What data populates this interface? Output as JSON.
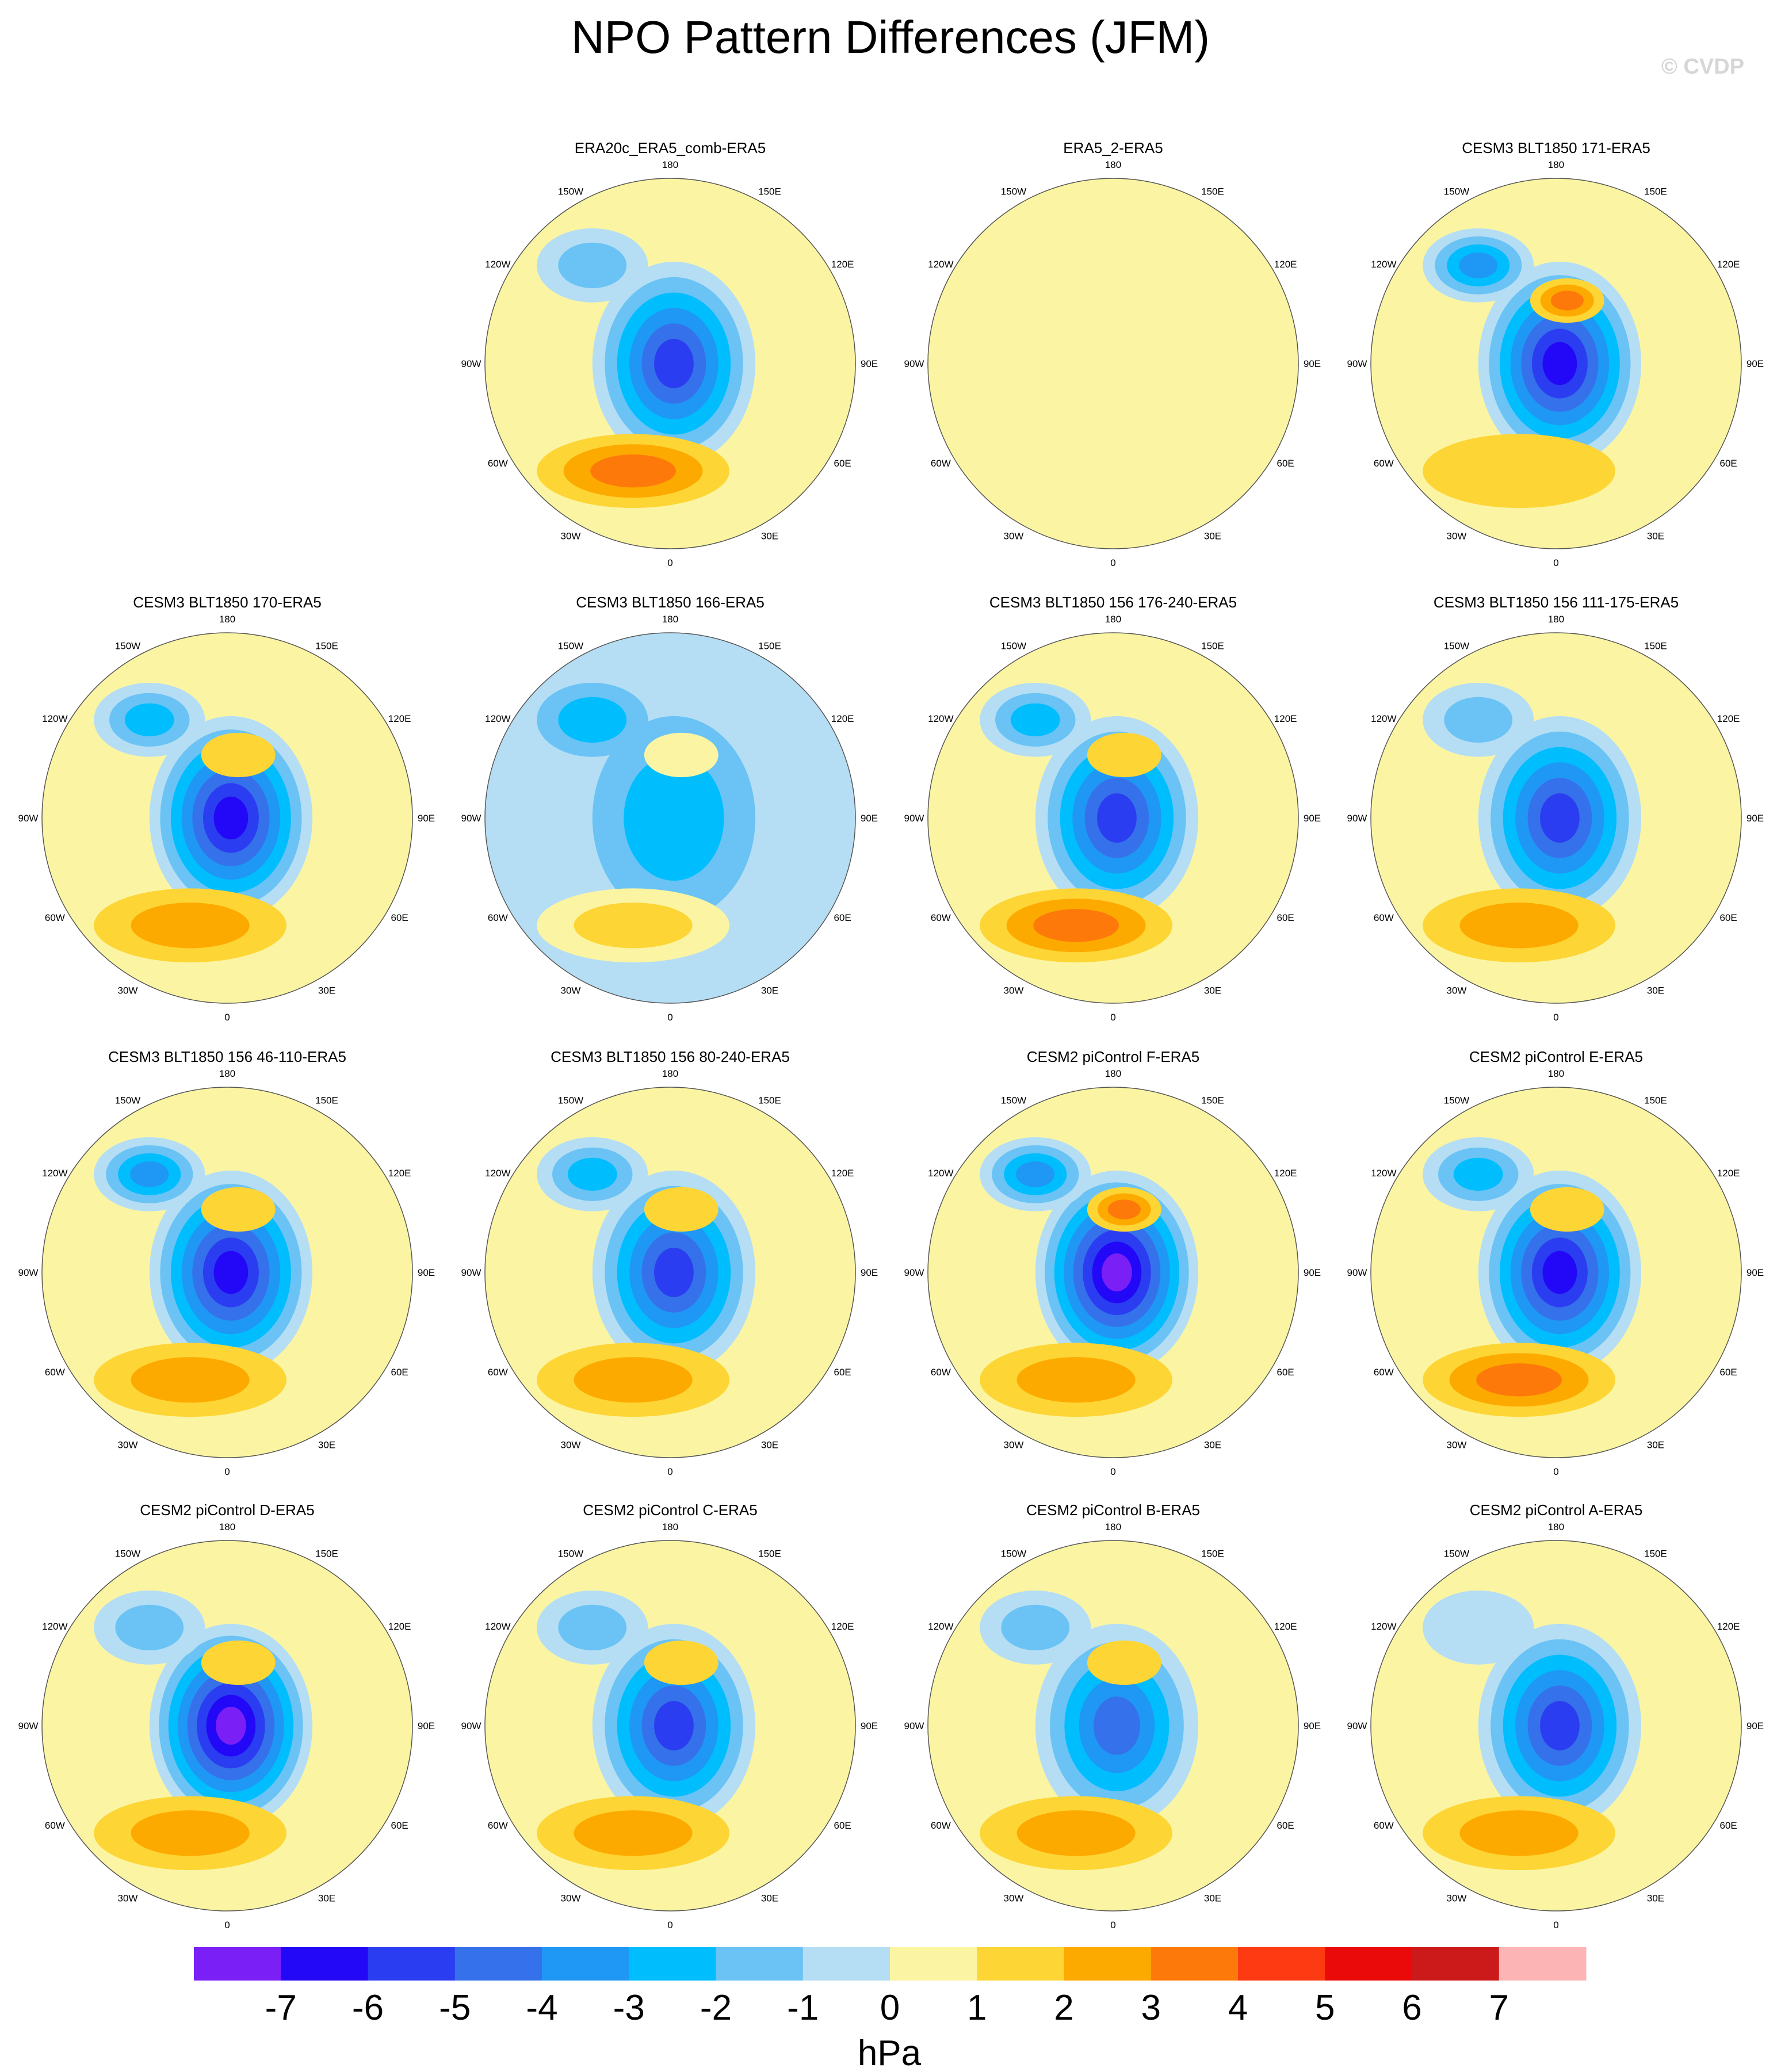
{
  "title": "NPO Pattern Differences (JFM)",
  "watermark": "© CVDP",
  "chart_data": {
    "type": "heatmap",
    "projection": "north-polar-stereographic",
    "variable": "sea level pressure difference",
    "units": "hPa",
    "levels": [
      -7,
      -6,
      -5,
      -4,
      -3,
      -2,
      -1,
      0,
      1,
      2,
      3,
      4,
      5,
      6,
      7
    ],
    "level_labels": [
      "-7",
      "-6",
      "-5",
      "-4",
      "-3",
      "-2",
      "-1",
      "0",
      "1",
      "2",
      "3",
      "4",
      "5",
      "6",
      "7"
    ],
    "colors": [
      "#7a1ff5",
      "#2208f7",
      "#2b3df0",
      "#3571ea",
      "#1f97f5",
      "#00befd",
      "#6ac3f4",
      "#b5def4",
      "#fbf5a3",
      "#fdd535",
      "#fdaa00",
      "#fd7a0a",
      "#fd3a12",
      "#ea0a0a",
      "#cc1a1a",
      "#fdb4b4"
    ],
    "longitude_labels": [
      "180",
      "150E",
      "120E",
      "90E",
      "60E",
      "30E",
      "0",
      "30W",
      "60W",
      "90W",
      "120W",
      "150W"
    ],
    "panels": [
      {
        "title": "ERA20c_ERA5_comb-ERA5",
        "row": 0,
        "col": 1,
        "center_min": -6.5,
        "atlantic_max": 3.5,
        "pacific_min": -2.4,
        "east_asia_max": 1.2,
        "background": 0.4
      },
      {
        "title": "ERA5_2-ERA5",
        "row": 0,
        "col": 2,
        "center_min": 0.3,
        "atlantic_max": 0.2,
        "pacific_min": -0.3,
        "east_asia_max": 0.2,
        "background": 0.3
      },
      {
        "title": "CESM3 BLT1850 171-ERA5",
        "row": 0,
        "col": 3,
        "center_min": -7.3,
        "atlantic_max": 2.2,
        "pacific_min": -4.2,
        "east_asia_max": 4.2,
        "background": 0.4
      },
      {
        "title": "CESM3 BLT1850 170-ERA5",
        "row": 1,
        "col": 0,
        "center_min": -6.6,
        "atlantic_max": 3.0,
        "pacific_min": -2.6,
        "east_asia_max": 1.4,
        "background": 0.4
      },
      {
        "title": "CESM3 BLT1850 166-ERA5",
        "row": 1,
        "col": 1,
        "center_min": -2.7,
        "atlantic_max": 1.9,
        "pacific_min": -2.5,
        "east_asia_max": 1.1,
        "background": -0.4
      },
      {
        "title": "CESM3 BLT1850 156 176-240-ERA5",
        "row": 1,
        "col": 2,
        "center_min": -6.4,
        "atlantic_max": 3.4,
        "pacific_min": -3.3,
        "east_asia_max": 1.5,
        "background": 0.4
      },
      {
        "title": "CESM3 BLT1850 156 111-175-ERA5",
        "row": 1,
        "col": 3,
        "center_min": -6.2,
        "atlantic_max": 2.6,
        "pacific_min": -2.4,
        "east_asia_max": 1.2,
        "background": 0.4
      },
      {
        "title": "CESM3 BLT1850 156 46-110-ERA5",
        "row": 2,
        "col": 0,
        "center_min": -7.2,
        "atlantic_max": 3.2,
        "pacific_min": -3.6,
        "east_asia_max": 2.0,
        "background": 0.4
      },
      {
        "title": "CESM3 BLT1850 156 80-240-ERA5",
        "row": 2,
        "col": 1,
        "center_min": -6.5,
        "atlantic_max": 2.9,
        "pacific_min": -2.9,
        "east_asia_max": 1.6,
        "background": 0.4
      },
      {
        "title": "CESM2 piControl F-ERA5",
        "row": 2,
        "col": 2,
        "center_min": -7.6,
        "atlantic_max": 3.3,
        "pacific_min": -3.8,
        "east_asia_max": 3.4,
        "background": 0.4
      },
      {
        "title": "CESM2 piControl E-ERA5",
        "row": 2,
        "col": 3,
        "center_min": -7.4,
        "atlantic_max": 3.5,
        "pacific_min": -2.9,
        "east_asia_max": 2.2,
        "background": 0.4
      },
      {
        "title": "CESM2 piControl D-ERA5",
        "row": 3,
        "col": 0,
        "center_min": -7.7,
        "atlantic_max": 3.2,
        "pacific_min": -2.4,
        "east_asia_max": 1.5,
        "background": 0.4
      },
      {
        "title": "CESM2 piControl C-ERA5",
        "row": 3,
        "col": 1,
        "center_min": -6.0,
        "atlantic_max": 2.5,
        "pacific_min": -1.6,
        "east_asia_max": 1.6,
        "background": 0.4
      },
      {
        "title": "CESM2 piControl B-ERA5",
        "row": 3,
        "col": 2,
        "center_min": -5.4,
        "atlantic_max": 2.7,
        "pacific_min": -2.2,
        "east_asia_max": 1.4,
        "background": 0.4
      },
      {
        "title": "CESM2 piControl A-ERA5",
        "row": 3,
        "col": 3,
        "center_min": -6.1,
        "atlantic_max": 3.3,
        "pacific_min": -1.4,
        "east_asia_max": 1.2,
        "background": 0.4
      }
    ]
  }
}
